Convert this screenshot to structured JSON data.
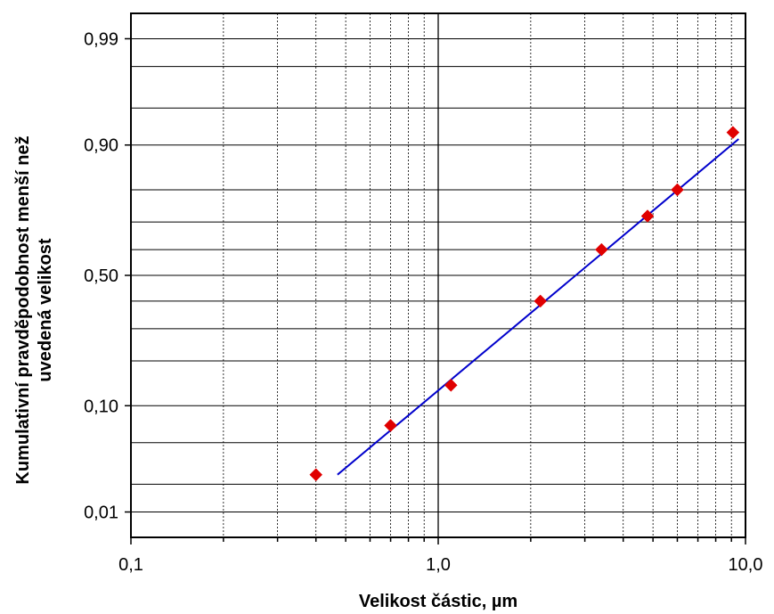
{
  "chart_data": {
    "type": "scatter",
    "title": "",
    "xlabel": "Velikost částic, µm",
    "ylabel_line1": "Kumulativní pravděpodobnost menší než",
    "ylabel_line2": "uvedená velikost",
    "x_scale": "log",
    "y_scale": "probability",
    "xlim": [
      0.1,
      10.0
    ],
    "ylim": [
      0.005,
      0.995
    ],
    "grid": true,
    "legend": "none",
    "x_tick_labels": [
      {
        "value": 0.1,
        "label": "0,1"
      },
      {
        "value": 1.0,
        "label": "1,0"
      },
      {
        "value": 10.0,
        "label": "10,0"
      }
    ],
    "y_tick_labels": [
      {
        "value": 0.01,
        "label": "0,01"
      },
      {
        "value": 0.1,
        "label": "0,10"
      },
      {
        "value": 0.5,
        "label": "0,50"
      },
      {
        "value": 0.9,
        "label": "0,90"
      },
      {
        "value": 0.99,
        "label": "0,99"
      }
    ],
    "y_gridlines": [
      0.01,
      0.02,
      0.05,
      0.1,
      0.2,
      0.3,
      0.4,
      0.5,
      0.6,
      0.7,
      0.8,
      0.9,
      0.95,
      0.98,
      0.99
    ],
    "series": [
      {
        "kind": "points",
        "color": "#e00000",
        "marker": "diamond",
        "points": [
          {
            "x": 0.4,
            "y": 0.025
          },
          {
            "x": 0.7,
            "y": 0.07
          },
          {
            "x": 1.1,
            "y": 0.14
          },
          {
            "x": 2.15,
            "y": 0.4
          },
          {
            "x": 3.4,
            "y": 0.6
          },
          {
            "x": 4.8,
            "y": 0.72
          },
          {
            "x": 6.0,
            "y": 0.8
          },
          {
            "x": 9.1,
            "y": 0.92
          }
        ]
      },
      {
        "kind": "fit-line",
        "color": "#0000cc",
        "points": [
          {
            "x": 0.47,
            "y": 0.025
          },
          {
            "x": 9.5,
            "y": 0.91
          }
        ]
      }
    ]
  }
}
